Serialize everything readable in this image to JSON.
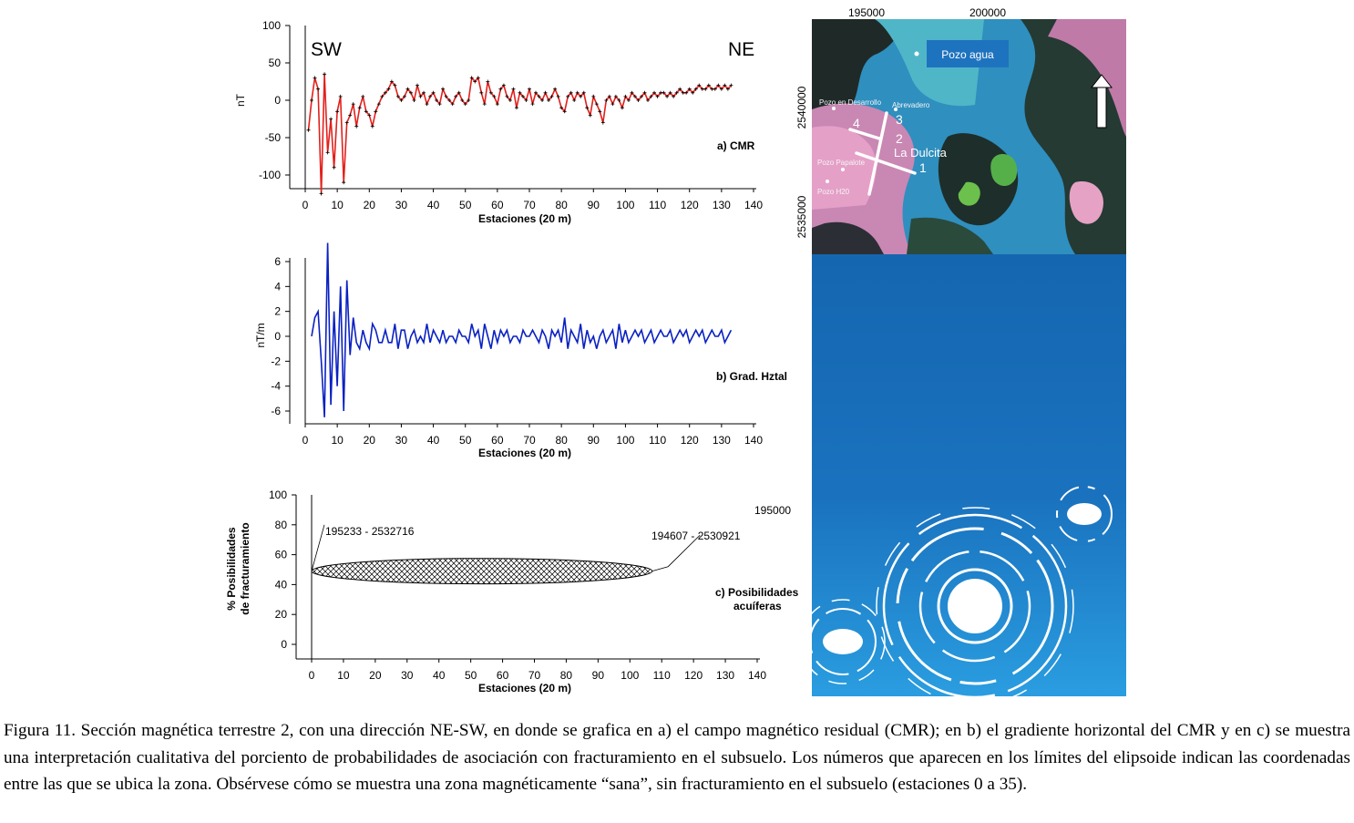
{
  "panel_a": {
    "label": "a) CMR",
    "left_label": "SW",
    "right_label": "NE",
    "chart_data": {
      "type": "line",
      "ylabel": "nT",
      "xlabel": "Estaciones  (20 m)",
      "xlim": [
        0,
        140
      ],
      "ylim": [
        -100,
        100
      ],
      "xticks": [
        "0",
        "10",
        "20",
        "30",
        "40",
        "50",
        "60",
        "70",
        "80",
        "90",
        "100",
        "110",
        "120",
        "130",
        "140"
      ],
      "yticks": [
        "100",
        "50",
        "0",
        "-50",
        "-100"
      ],
      "line_color": "#e3201b",
      "marker_color": "#000000",
      "x": [
        1,
        2,
        3,
        4,
        5,
        6,
        7,
        8,
        9,
        10,
        11,
        12,
        13,
        14,
        15,
        16,
        17,
        18,
        19,
        20,
        21,
        22,
        23,
        24,
        25,
        26,
        27,
        28,
        29,
        30,
        31,
        32,
        33,
        34,
        35,
        36,
        37,
        38,
        39,
        40,
        41,
        42,
        43,
        44,
        45,
        46,
        47,
        48,
        49,
        50,
        51,
        52,
        53,
        54,
        55,
        56,
        57,
        58,
        59,
        60,
        61,
        62,
        63,
        64,
        65,
        66,
        67,
        68,
        69,
        70,
        71,
        72,
        73,
        74,
        75,
        76,
        77,
        78,
        79,
        80,
        81,
        82,
        83,
        84,
        85,
        86,
        87,
        88,
        89,
        90,
        91,
        92,
        93,
        94,
        95,
        96,
        97,
        98,
        99,
        100,
        101,
        102,
        103,
        104,
        105,
        106,
        107,
        108,
        109,
        110,
        111,
        112,
        113,
        114,
        115,
        116,
        117,
        118,
        119,
        120,
        121,
        122,
        123,
        124,
        125,
        126,
        127,
        128,
        129,
        130,
        131,
        132,
        133
      ],
      "y": [
        -40,
        0,
        30,
        15,
        -125,
        35,
        -70,
        -25,
        -90,
        -15,
        5,
        -110,
        -30,
        -20,
        -5,
        -35,
        -10,
        5,
        -15,
        -20,
        -35,
        -15,
        -5,
        5,
        10,
        15,
        25,
        20,
        5,
        0,
        5,
        15,
        10,
        0,
        20,
        5,
        10,
        -5,
        5,
        10,
        0,
        -5,
        15,
        5,
        0,
        -5,
        5,
        10,
        0,
        -5,
        0,
        30,
        25,
        30,
        10,
        -5,
        25,
        10,
        5,
        -5,
        15,
        20,
        5,
        0,
        15,
        -10,
        10,
        5,
        0,
        15,
        -5,
        10,
        5,
        0,
        10,
        0,
        5,
        15,
        5,
        -10,
        -15,
        5,
        10,
        0,
        10,
        5,
        10,
        -10,
        -20,
        5,
        -5,
        -15,
        -30,
        0,
        5,
        -5,
        5,
        0,
        -10,
        5,
        0,
        10,
        5,
        0,
        5,
        10,
        0,
        5,
        10,
        5,
        10,
        10,
        5,
        10,
        5,
        10,
        15,
        10,
        10,
        15,
        10,
        15,
        20,
        15,
        15,
        20,
        15,
        15,
        20,
        15,
        20,
        15,
        20
      ]
    }
  },
  "panel_b": {
    "label": "b) Grad. Hztal",
    "chart_data": {
      "type": "line",
      "ylabel": "nT/m",
      "xlabel": "Estaciones (20 m)",
      "xlim": [
        0,
        140
      ],
      "ylim": [
        -6,
        6
      ],
      "xticks": [
        "0",
        "10",
        "20",
        "30",
        "40",
        "50",
        "60",
        "70",
        "80",
        "90",
        "100",
        "110",
        "120",
        "130",
        "140"
      ],
      "yticks": [
        "6",
        "4",
        "2",
        "0",
        "-2",
        "-4",
        "-6"
      ],
      "line_color": "#0a21c2",
      "x": [
        2,
        3,
        4,
        5,
        6,
        7,
        8,
        9,
        10,
        11,
        12,
        13,
        14,
        15,
        16,
        17,
        18,
        19,
        20,
        21,
        22,
        23,
        24,
        25,
        26,
        27,
        28,
        29,
        30,
        31,
        32,
        33,
        34,
        35,
        36,
        37,
        38,
        39,
        40,
        41,
        42,
        43,
        44,
        45,
        46,
        47,
        48,
        49,
        50,
        51,
        52,
        53,
        54,
        55,
        56,
        57,
        58,
        59,
        60,
        61,
        62,
        63,
        64,
        65,
        66,
        67,
        68,
        69,
        70,
        71,
        72,
        73,
        74,
        75,
        76,
        77,
        78,
        79,
        80,
        81,
        82,
        83,
        84,
        85,
        86,
        87,
        88,
        89,
        90,
        91,
        92,
        93,
        94,
        95,
        96,
        97,
        98,
        99,
        100,
        101,
        102,
        103,
        104,
        105,
        106,
        107,
        108,
        109,
        110,
        111,
        112,
        113,
        114,
        115,
        116,
        117,
        118,
        119,
        120,
        121,
        122,
        123,
        124,
        125,
        126,
        127,
        128,
        129,
        130,
        131,
        132,
        133
      ],
      "y": [
        0,
        1.5,
        2,
        -2,
        -6.5,
        7.5,
        -5.5,
        2,
        -4,
        4,
        -6,
        4.5,
        -1.5,
        1.5,
        -0.5,
        -1,
        0.5,
        -0.5,
        -1,
        1,
        0.5,
        -0.5,
        -0.5,
        0.5,
        -0.5,
        -0.5,
        1,
        -1,
        0.5,
        0.5,
        -1,
        0,
        0.5,
        -0.5,
        0,
        -0.5,
        1,
        -0.5,
        0.5,
        0,
        -0.5,
        0.5,
        -0.5,
        0,
        0,
        -0.5,
        0.5,
        0,
        0,
        -0.5,
        1,
        0,
        0.5,
        -1,
        1,
        0,
        -1,
        0.5,
        -0.5,
        0.5,
        0,
        0.5,
        -0.5,
        0,
        0,
        -0.5,
        0.5,
        0,
        0,
        0.5,
        0,
        -0.5,
        0.5,
        0,
        -1,
        0.5,
        0,
        0.5,
        -0.5,
        1.5,
        -1,
        0.5,
        0,
        -0.5,
        1,
        -1,
        0.5,
        -0.5,
        0,
        -1,
        0,
        0.5,
        -0.5,
        0,
        0.5,
        -1,
        1,
        -0.5,
        0.5,
        -0.5,
        0,
        0.5,
        0,
        0.5,
        -0.5,
        0,
        0.5,
        -0.5,
        0,
        0.5,
        0,
        0,
        0.5,
        -0.5,
        0,
        0.5,
        0,
        0.5,
        -0.5,
        0,
        0.5,
        0,
        0.5,
        -0.5,
        0,
        0.5,
        0,
        0,
        0.5,
        -0.5,
        0,
        0.5
      ]
    }
  },
  "panel_c": {
    "label_line1": "c) Posibilidades",
    "label_line2": "acuíferas",
    "coord_left": "195233 - 2532716",
    "coord_right": "194607 - 2530921",
    "chart_data": {
      "type": "area",
      "ylabel_line1": "% Posibilidades",
      "ylabel_line2": "de fracturamiento",
      "xlabel": "Estaciones (20 m)",
      "xlim": [
        0,
        140
      ],
      "ylim": [
        0,
        100
      ],
      "xticks": [
        "0",
        "10",
        "20",
        "30",
        "40",
        "50",
        "60",
        "70",
        "80",
        "90",
        "100",
        "110",
        "120",
        "130",
        "140"
      ],
      "yticks": [
        "100",
        "80",
        "60",
        "40",
        "20",
        "0"
      ],
      "ellipse": {
        "x_start": 0,
        "x_end": 107,
        "y_center": 49,
        "y_top": 57,
        "y_bottom": 40
      },
      "fill_pattern": "cross-hatch"
    }
  },
  "map": {
    "x_ticks": [
      "195000",
      "200000"
    ],
    "y_ticks": [
      "2540000",
      "2535000"
    ],
    "legend_label": "Pozo agua",
    "lower_tick": "195000",
    "site_name": "La Dulcita",
    "profile_numbers": [
      "4",
      "3",
      "2",
      "1"
    ],
    "wells": [
      "Pozo en Desarrollo",
      "Abrevadero",
      "Pozo Papalote",
      "Pozo H20"
    ],
    "north_arrow": "north-arrow-icon",
    "colors": {
      "water": "#1a72be",
      "legend_box": "#1e73be"
    }
  },
  "caption": "Figura 11. Sección magnética terrestre 2, con una dirección NE-SW, en donde se grafica en a) el campo magnético residual (CMR); en b) el gradiente horizontal del CMR y en c) se muestra una interpretación cualitativa del porciento de probabilidades de asociación con fracturamiento en el subsuelo. Los números que aparecen en los límites del elipsoide indican las coordenadas entre las que se ubica la zona. Obsérvese cómo se muestra una zona magnéticamente “sana”, sin fracturamiento en el subsuelo (estaciones 0 a 35)."
}
